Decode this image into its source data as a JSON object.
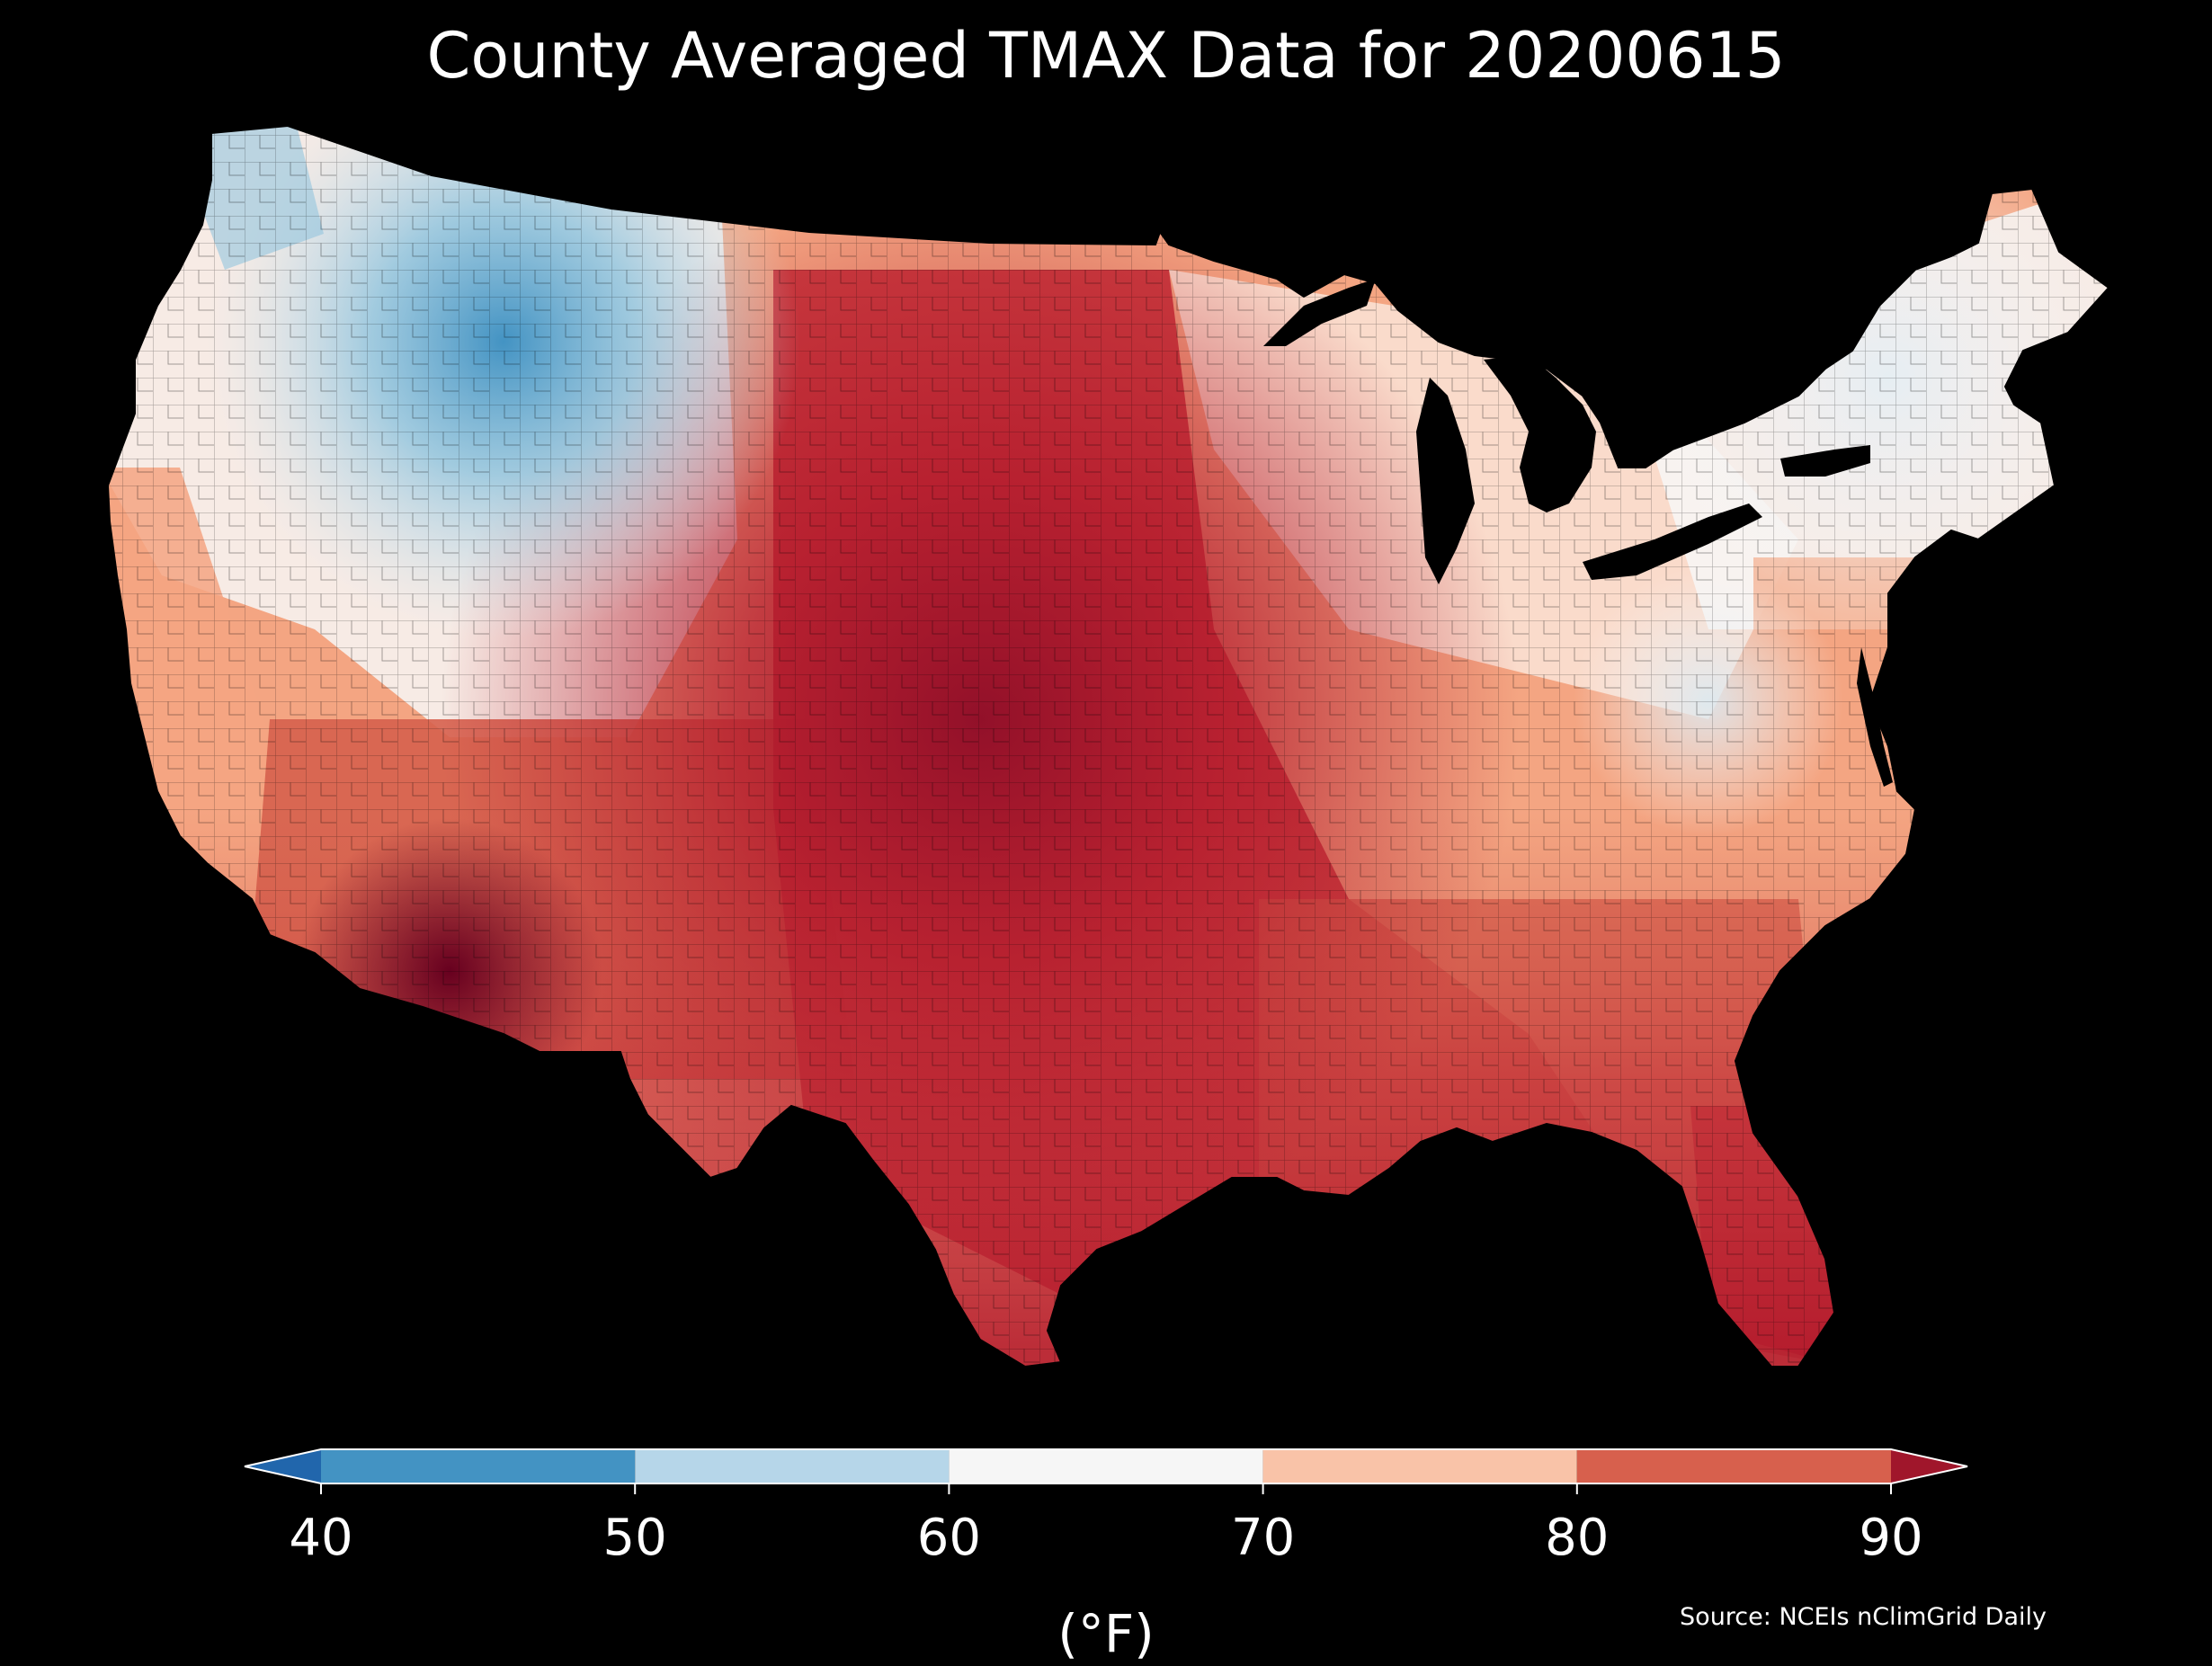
{
  "title": "County Averaged TMAX Data for 20200615",
  "colorbar": {
    "ticks": [
      "40",
      "50",
      "60",
      "70",
      "80",
      "90"
    ],
    "unit_label": "(°F)",
    "bins": [
      {
        "from": 40,
        "to": 50,
        "color": "#4393c3"
      },
      {
        "from": 50,
        "to": 60,
        "color": "#b6d6e9"
      },
      {
        "from": 60,
        "to": 70,
        "color": "#f6f6f6"
      },
      {
        "from": 70,
        "to": 80,
        "color": "#f9c3a8"
      },
      {
        "from": 80,
        "to": 90,
        "color": "#d7604d"
      }
    ],
    "under_color": "#2166ac",
    "over_color": "#a0162b",
    "extend": "both"
  },
  "source": "Source: NCEIs nClimGrid Daily",
  "map": {
    "region": "Contiguous United States",
    "variable": "TMAX",
    "date": "20200615",
    "background_color": "#000000",
    "county_borders_color": "#000000"
  }
}
